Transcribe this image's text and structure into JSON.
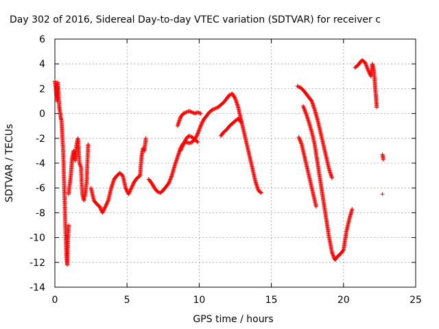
{
  "chart_data": {
    "type": "scatter",
    "title": "Day 302 of 2016, Sidereal Day-to-day VTEC variation (SDTVAR) for receiver c",
    "xlabel": "GPS time / hours",
    "ylabel": "SDTVAR / TECUs",
    "xlim": [
      0,
      25
    ],
    "ylim": [
      -14,
      6
    ],
    "xticks": [
      0,
      5,
      10,
      15,
      20,
      25
    ],
    "yticks": [
      -14,
      -12,
      -10,
      -8,
      -6,
      -4,
      -2,
      0,
      2,
      4,
      6
    ],
    "grid": true,
    "marker": "+",
    "color": "#ff0000",
    "segments": [
      [
        [
          0.0,
          2.6
        ],
        [
          0.05,
          2.2
        ],
        [
          0.1,
          1.5
        ],
        [
          0.15,
          1.0
        ],
        [
          0.2,
          2.5
        ],
        [
          0.25,
          1.8
        ],
        [
          0.3,
          0.5
        ],
        [
          0.35,
          0.2
        ],
        [
          0.4,
          -0.3
        ],
        [
          0.45,
          -0.5
        ],
        [
          0.5,
          -1.5
        ],
        [
          0.55,
          -2.5
        ],
        [
          0.6,
          -4.0
        ],
        [
          0.65,
          -6.0
        ],
        [
          0.7,
          -8.0
        ],
        [
          0.75,
          -10.0
        ],
        [
          0.8,
          -11.5
        ],
        [
          0.85,
          -12.2
        ],
        [
          0.9,
          -10.5
        ],
        [
          0.95,
          -9.0
        ]
      ],
      [
        [
          0.95,
          -6.5
        ],
        [
          1.0,
          -6.0
        ],
        [
          1.1,
          -5.0
        ],
        [
          1.2,
          -3.5
        ],
        [
          1.3,
          -3.0
        ],
        [
          1.4,
          -3.8
        ],
        [
          1.5,
          -2.5
        ],
        [
          1.6,
          -2.0
        ],
        [
          1.7,
          -4.0
        ],
        [
          1.8,
          -4.3
        ],
        [
          1.9,
          -6.5
        ],
        [
          2.0,
          -7.0
        ],
        [
          2.1,
          -6.5
        ],
        [
          2.2,
          -5.5
        ],
        [
          2.3,
          -2.5
        ]
      ],
      [
        [
          2.5,
          -6.0
        ],
        [
          2.7,
          -7.0
        ],
        [
          2.9,
          -7.3
        ],
        [
          3.1,
          -7.5
        ],
        [
          3.3,
          -8.0
        ],
        [
          3.5,
          -7.5
        ],
        [
          3.7,
          -7.0
        ],
        [
          3.9,
          -6.0
        ],
        [
          4.1,
          -5.3
        ],
        [
          4.3,
          -5.0
        ],
        [
          4.5,
          -4.8
        ],
        [
          4.7,
          -5.0
        ],
        [
          4.9,
          -6.0
        ],
        [
          5.1,
          -6.5
        ],
        [
          5.3,
          -6.0
        ],
        [
          5.5,
          -5.5
        ],
        [
          5.7,
          -5.2
        ],
        [
          5.9,
          -5.0
        ],
        [
          6.0,
          -3.5
        ],
        [
          6.1,
          -2.8
        ],
        [
          6.2,
          -3.0
        ],
        [
          6.3,
          -2.0
        ]
      ],
      [
        [
          6.5,
          -5.3
        ],
        [
          6.7,
          -5.6
        ],
        [
          6.9,
          -6.0
        ],
        [
          7.1,
          -6.3
        ],
        [
          7.3,
          -6.4
        ],
        [
          7.5,
          -6.2
        ],
        [
          7.7,
          -5.9
        ],
        [
          7.9,
          -5.6
        ],
        [
          8.1,
          -5.0
        ],
        [
          8.3,
          -4.2
        ],
        [
          8.5,
          -3.5
        ],
        [
          8.7,
          -2.8
        ],
        [
          8.9,
          -2.4
        ],
        [
          9.1,
          -2.3
        ],
        [
          9.3,
          -2.4
        ],
        [
          9.5,
          -2.3
        ],
        [
          9.7,
          -2.1
        ],
        [
          9.9,
          -1.6
        ],
        [
          10.1,
          -1.0
        ],
        [
          10.3,
          -0.5
        ],
        [
          10.5,
          -0.2
        ],
        [
          10.7,
          0.1
        ],
        [
          10.9,
          0.3
        ],
        [
          11.1,
          0.4
        ],
        [
          11.3,
          0.5
        ],
        [
          11.5,
          0.7
        ],
        [
          11.7,
          0.9
        ],
        [
          11.9,
          1.2
        ],
        [
          12.1,
          1.5
        ],
        [
          12.3,
          1.6
        ],
        [
          12.5,
          1.2
        ],
        [
          12.7,
          0.5
        ],
        [
          12.9,
          -0.5
        ],
        [
          13.1,
          -1.5
        ],
        [
          13.3,
          -2.5
        ],
        [
          13.5,
          -3.5
        ],
        [
          13.7,
          -4.5
        ],
        [
          13.9,
          -5.5
        ],
        [
          14.1,
          -6.2
        ],
        [
          14.3,
          -6.4
        ]
      ],
      [
        [
          8.5,
          -1.0
        ],
        [
          8.7,
          -0.3
        ],
        [
          8.9,
          0.0
        ],
        [
          9.1,
          0.1
        ],
        [
          9.3,
          0.2
        ],
        [
          9.5,
          0.1
        ],
        [
          9.7,
          0.0
        ],
        [
          9.9,
          0.1
        ],
        [
          10.1,
          0.0
        ]
      ],
      [
        [
          8.7,
          -3.0
        ],
        [
          8.9,
          -2.5
        ],
        [
          9.1,
          -2.0
        ],
        [
          9.3,
          -1.8
        ],
        [
          9.5,
          -1.9
        ],
        [
          9.7,
          -2.1
        ],
        [
          9.9,
          -2.3
        ]
      ],
      [
        [
          11.5,
          -1.8
        ],
        [
          11.7,
          -1.5
        ],
        [
          11.9,
          -1.3
        ],
        [
          12.1,
          -1.0
        ],
        [
          12.3,
          -0.8
        ],
        [
          12.5,
          -0.6
        ],
        [
          12.7,
          -0.4
        ],
        [
          12.9,
          -0.7
        ]
      ],
      [
        [
          16.8,
          2.2
        ],
        [
          17.0,
          2.1
        ],
        [
          17.2,
          1.9
        ],
        [
          17.4,
          1.6
        ],
        [
          17.6,
          1.3
        ],
        [
          17.8,
          1.0
        ],
        [
          18.0,
          0.3
        ],
        [
          18.2,
          -0.5
        ],
        [
          18.4,
          -1.5
        ],
        [
          18.6,
          -2.5
        ],
        [
          18.8,
          -3.5
        ],
        [
          19.0,
          -4.5
        ],
        [
          19.2,
          -5.2
        ]
      ],
      [
        [
          17.2,
          0.6
        ],
        [
          17.4,
          0.0
        ],
        [
          17.6,
          -0.7
        ],
        [
          17.8,
          -1.5
        ],
        [
          18.0,
          -2.5
        ],
        [
          18.2,
          -4.0
        ],
        [
          18.4,
          -5.5
        ],
        [
          18.6,
          -7.0
        ],
        [
          18.8,
          -8.5
        ],
        [
          19.0,
          -10.0
        ],
        [
          19.2,
          -11.2
        ],
        [
          19.4,
          -11.8
        ],
        [
          19.6,
          -11.5
        ],
        [
          19.8,
          -11.3
        ],
        [
          20.0,
          -11.0
        ],
        [
          20.2,
          -9.5
        ],
        [
          20.4,
          -8.5
        ],
        [
          20.6,
          -7.7
        ]
      ],
      [
        [
          16.9,
          -1.9
        ],
        [
          17.1,
          -2.5
        ],
        [
          17.3,
          -3.5
        ],
        [
          17.5,
          -4.5
        ],
        [
          17.7,
          -5.5
        ],
        [
          17.9,
          -6.5
        ],
        [
          18.1,
          -7.5
        ]
      ],
      [
        [
          20.8,
          3.7
        ],
        [
          21.0,
          3.9
        ],
        [
          21.2,
          4.2
        ],
        [
          21.3,
          4.3
        ],
        [
          21.5,
          4.1
        ],
        [
          21.7,
          3.5
        ],
        [
          21.9,
          3.0
        ],
        [
          22.0,
          4.0
        ],
        [
          22.1,
          3.5
        ],
        [
          22.2,
          2.0
        ],
        [
          22.3,
          0.5
        ]
      ],
      [
        [
          22.7,
          -3.3
        ],
        [
          22.75,
          -3.7
        ]
      ],
      [
        [
          22.7,
          -6.5
        ]
      ]
    ]
  }
}
